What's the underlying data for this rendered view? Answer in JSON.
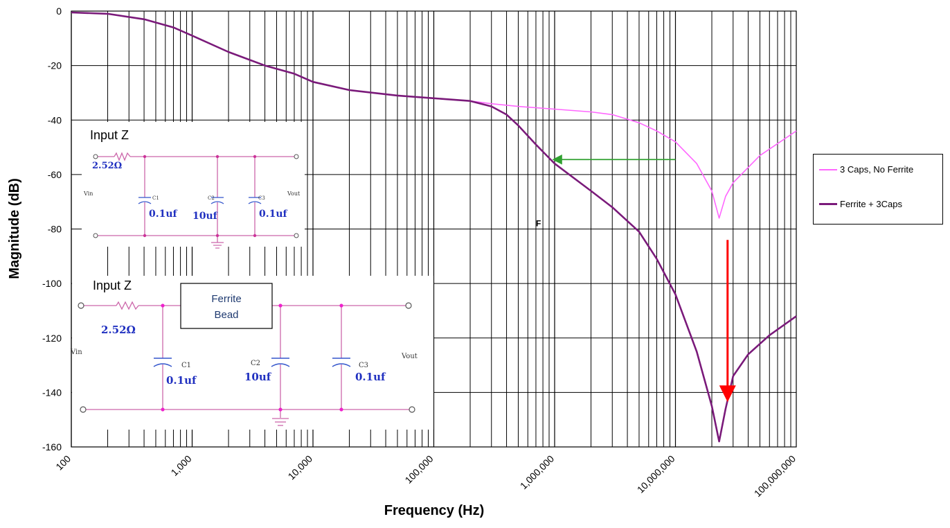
{
  "chart_data": {
    "type": "line",
    "xlabel": "Frequency (Hz)",
    "ylabel": "Magnitude (dB)",
    "xscale": "log",
    "xlim": [
      100,
      100000000
    ],
    "ylim": [
      -160,
      0
    ],
    "grid": true,
    "legend_placement": "right",
    "x_tick_labels": [
      "100",
      "1,000",
      "10,000",
      "100,000",
      "1,000,000",
      "10,000,000",
      "100,000,000"
    ],
    "y_tick_labels": [
      "0",
      "-20",
      "-40",
      "-60",
      "-80",
      "-100",
      "-120",
      "-140",
      "-160"
    ],
    "y_ticks": [
      0,
      -20,
      -40,
      -60,
      -80,
      -100,
      -120,
      -140,
      -160
    ],
    "x_ticks": [
      100,
      1000,
      10000,
      100000,
      1000000,
      10000000,
      100000000
    ],
    "series": [
      {
        "name": "3 Caps, No Ferrite",
        "color": "#ff66ff",
        "points": [
          [
            100,
            -0.5
          ],
          [
            200,
            -1
          ],
          [
            400,
            -3
          ],
          [
            700,
            -6
          ],
          [
            1000,
            -9
          ],
          [
            2000,
            -15
          ],
          [
            4000,
            -20
          ],
          [
            7000,
            -23
          ],
          [
            10000,
            -26
          ],
          [
            20000,
            -29
          ],
          [
            50000,
            -31
          ],
          [
            100000,
            -32
          ],
          [
            200000,
            -33
          ],
          [
            300000,
            -34
          ],
          [
            500000,
            -35
          ],
          [
            1000000,
            -36
          ],
          [
            2000000,
            -37
          ],
          [
            3000000,
            -38
          ],
          [
            5000000,
            -41
          ],
          [
            7000000,
            -44
          ],
          [
            10000000,
            -48
          ],
          [
            15000000,
            -56
          ],
          [
            20000000,
            -66
          ],
          [
            23000000,
            -76
          ],
          [
            26000000,
            -68
          ],
          [
            30000000,
            -63
          ],
          [
            50000000,
            -53
          ],
          [
            100000000,
            -44
          ]
        ]
      },
      {
        "name": "Ferrite + 3Caps",
        "color": "#7a1a7a",
        "points": [
          [
            100,
            -0.5
          ],
          [
            200,
            -1
          ],
          [
            400,
            -3
          ],
          [
            700,
            -6
          ],
          [
            1000,
            -9
          ],
          [
            2000,
            -15
          ],
          [
            4000,
            -20
          ],
          [
            7000,
            -23
          ],
          [
            10000,
            -26
          ],
          [
            20000,
            -29
          ],
          [
            50000,
            -31
          ],
          [
            100000,
            -32
          ],
          [
            200000,
            -33
          ],
          [
            300000,
            -35
          ],
          [
            400000,
            -38
          ],
          [
            500000,
            -42
          ],
          [
            700000,
            -49
          ],
          [
            1000000,
            -56
          ],
          [
            2000000,
            -66
          ],
          [
            3000000,
            -72
          ],
          [
            5000000,
            -81
          ],
          [
            7000000,
            -91
          ],
          [
            10000000,
            -104
          ],
          [
            15000000,
            -125
          ],
          [
            20000000,
            -145
          ],
          [
            23000000,
            -158
          ],
          [
            26000000,
            -146
          ],
          [
            30000000,
            -134
          ],
          [
            40000000,
            -126
          ],
          [
            60000000,
            -119
          ],
          [
            100000000,
            -112
          ]
        ]
      }
    ],
    "annotations": [
      {
        "type": "arrow",
        "color": "#30a030",
        "from": [
          10000000,
          -54.5
        ],
        "to": [
          1000000,
          -54.5
        ]
      },
      {
        "type": "arrow",
        "color": "#ff0000",
        "from": [
          27000000,
          -84
        ],
        "to": [
          27000000,
          -142
        ]
      },
      {
        "type": "text",
        "text": "F",
        "at": [
          700000,
          -79
        ]
      }
    ]
  },
  "schematic_top": {
    "title": "Input Z",
    "resistor": "2.52Ω",
    "vin": "Vin",
    "vout": "Vout",
    "c1_name": "C1",
    "c1_value": "0.1uf",
    "c2_name": "C2",
    "c2_value": "10uf",
    "c3_name": "C3",
    "c3_value": "0.1uf"
  },
  "schematic_bottom": {
    "title": "Input Z",
    "ferrite_line1": "Ferrite",
    "ferrite_line2": "Bead",
    "resistor": "2.52Ω",
    "vin": "Vin",
    "vout": "Vout",
    "c1_name": "C1",
    "c1_value": "0.1uf",
    "c2_name": "C2",
    "c2_value": "10uf",
    "c3_name": "C3",
    "c3_value": "0.1uf"
  }
}
